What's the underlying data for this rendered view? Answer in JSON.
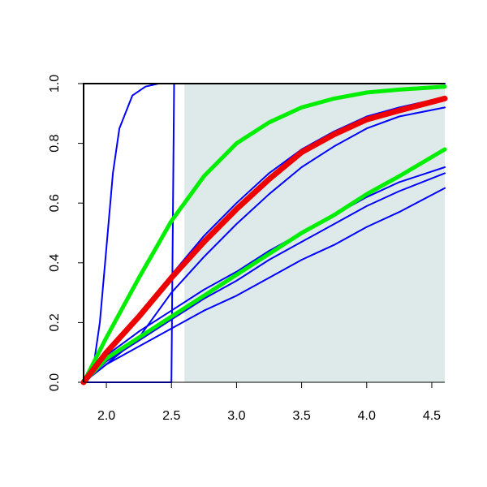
{
  "chart_data": {
    "type": "line",
    "xlim": [
      1.825,
      4.6
    ],
    "ylim": [
      0,
      1
    ],
    "xticks": [
      {
        "value": 2,
        "label": "2.0"
      },
      2.5,
      {
        "value": 3,
        "label": "3.0"
      },
      3.5,
      {
        "value": 4,
        "label": "4.0"
      },
      4.5
    ],
    "yticks": [
      {
        "value": 0,
        "label": "0.0"
      },
      0.2,
      0.4,
      0.6,
      0.8,
      {
        "value": 1,
        "label": "1.0"
      }
    ],
    "shade": {
      "xlim": [
        2.6,
        4.6
      ],
      "color": "#deeaea"
    },
    "series": [
      {
        "color": "#0000ff",
        "lwd": 2,
        "x": [
          1.825,
          1.9,
          1.95,
          2.0,
          2.05,
          2.1,
          2.2,
          2.3,
          2.4,
          2.6,
          4.6
        ],
        "values": [
          0,
          0.05,
          0.2,
          0.45,
          0.7,
          0.85,
          0.96,
          0.99,
          1,
          1,
          1
        ]
      },
      {
        "color": "#0000ff",
        "lwd": 2,
        "x": [
          1.825,
          2.5,
          2.52,
          4.6
        ],
        "values": [
          0,
          0,
          1,
          1
        ]
      },
      {
        "color": "#0000ff",
        "lwd": 2,
        "x": [
          1.825,
          2,
          2.25,
          2.5,
          2.75,
          3,
          3.25,
          3.5,
          3.75,
          4,
          4.25,
          4.6
        ],
        "values": [
          0,
          0.1,
          0.23,
          0.36,
          0.49,
          0.6,
          0.7,
          0.78,
          0.84,
          0.89,
          0.92,
          0.955
        ]
      },
      {
        "color": "#0000ff",
        "lwd": 2,
        "x": [
          1.825,
          2,
          2.25,
          2.5,
          2.75,
          3,
          3.25,
          3.5,
          3.75,
          4,
          4.25,
          4.6
        ],
        "values": [
          0,
          0.06,
          0.15,
          0.3,
          0.42,
          0.53,
          0.63,
          0.72,
          0.79,
          0.85,
          0.89,
          0.92
        ]
      },
      {
        "color": "#0000ff",
        "lwd": 2,
        "x": [
          1.825,
          2,
          2.25,
          2.5,
          2.75,
          3,
          3.25,
          3.5,
          3.75,
          4,
          4.25,
          4.6
        ],
        "values": [
          0,
          0.09,
          0.17,
          0.24,
          0.31,
          0.37,
          0.44,
          0.5,
          0.56,
          0.62,
          0.67,
          0.72
        ]
      },
      {
        "color": "#0000ff",
        "lwd": 2,
        "x": [
          1.825,
          2,
          2.25,
          2.5,
          2.75,
          3,
          3.25,
          3.5,
          3.75,
          4,
          4.25,
          4.6
        ],
        "values": [
          0,
          0.07,
          0.14,
          0.21,
          0.28,
          0.34,
          0.41,
          0.47,
          0.53,
          0.59,
          0.64,
          0.7
        ]
      },
      {
        "color": "#0000ff",
        "lwd": 2,
        "x": [
          1.825,
          2,
          2.25,
          2.5,
          2.75,
          3,
          3.25,
          3.5,
          3.75,
          4,
          4.25,
          4.6
        ],
        "values": [
          0,
          0.06,
          0.12,
          0.18,
          0.24,
          0.29,
          0.35,
          0.41,
          0.46,
          0.52,
          0.57,
          0.65
        ]
      },
      {
        "color": "#00ee00",
        "lwd": 5,
        "x": [
          1.825,
          2,
          2.25,
          2.5,
          2.75,
          3,
          3.25,
          3.5,
          3.75,
          4,
          4.25,
          4.6
        ],
        "values": [
          0,
          0.15,
          0.35,
          0.54,
          0.69,
          0.8,
          0.87,
          0.92,
          0.95,
          0.97,
          0.98,
          0.99
        ]
      },
      {
        "color": "#00ee00",
        "lwd": 5,
        "x": [
          1.825,
          2,
          2.25,
          2.5,
          2.75,
          3,
          3.25,
          3.5,
          3.75,
          4,
          4.25,
          4.6
        ],
        "values": [
          0,
          0.08,
          0.15,
          0.22,
          0.29,
          0.36,
          0.43,
          0.5,
          0.56,
          0.63,
          0.69,
          0.78
        ]
      },
      {
        "color": "#ee0000",
        "lwd": 7,
        "x": [
          1.825,
          2,
          2.25,
          2.5,
          2.75,
          3,
          3.25,
          3.5,
          3.75,
          4,
          4.25,
          4.6
        ],
        "values": [
          0,
          0.1,
          0.22,
          0.35,
          0.47,
          0.58,
          0.68,
          0.77,
          0.83,
          0.88,
          0.91,
          0.95
        ]
      }
    ]
  }
}
